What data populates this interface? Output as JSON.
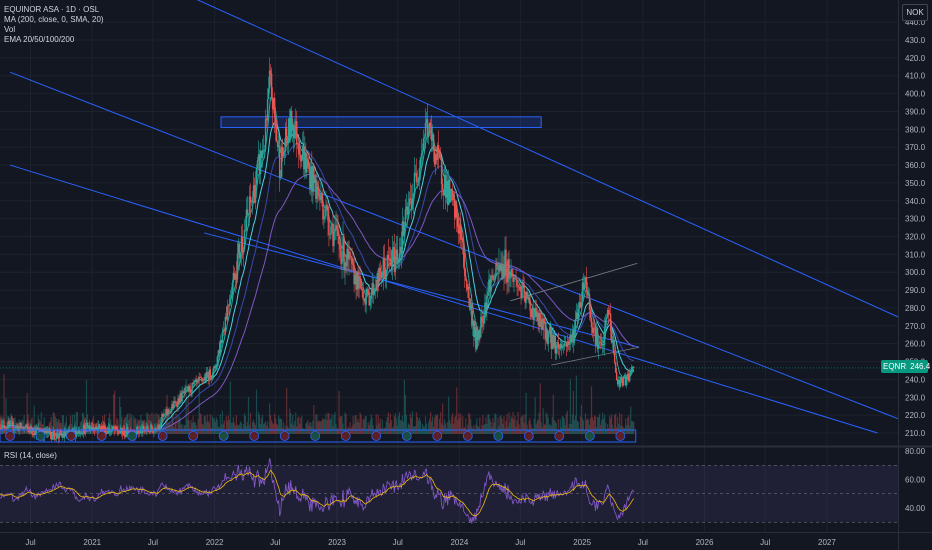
{
  "legend": {
    "title": "EQUINOR ASA · 1D · OSL",
    "ma": "MA (200, close, 0, SMA, 20)",
    "vol": "Vol",
    "ema": "EMA 20/50/100/200"
  },
  "currency": "NOK",
  "rsi_label": "RSI (14, close)",
  "price_tag": {
    "symbol": "EQNR",
    "price": "246.4"
  },
  "colors": {
    "background": "#131722",
    "grid": "#1e222d",
    "up": "#26a69a",
    "down": "#ef5350",
    "trendline": "#2962ff",
    "rsi": "#7e57c2",
    "rsi_ma": "#f0b90b",
    "ema20": "#26a69a",
    "ema50": "#4dd0e1",
    "ema100": "#3949ab",
    "ema200": "#7e57c2"
  },
  "chart_data": [
    {
      "type": "candlestick",
      "title": "EQUINOR ASA · 1D · OSL",
      "ylim": [
        205,
        440
      ],
      "y_ticks": [
        210,
        220,
        230,
        240,
        250,
        260,
        270,
        280,
        290,
        300,
        310,
        320,
        330,
        340,
        350,
        360,
        370,
        380,
        390,
        400,
        410,
        420,
        430,
        440
      ],
      "y_tick_labels": [
        "210.0",
        "220.0",
        "230.0",
        "240.0",
        "250.0",
        "260.0",
        "270.0",
        "280.0",
        "290.0",
        "300.0",
        "310.0",
        "320.0",
        "330.0",
        "340.0",
        "350.0",
        "360.0",
        "370.0",
        "380.0",
        "390.0",
        "400.0",
        "410.0",
        "420.0",
        "430.0",
        "440.0"
      ],
      "x_ticks": [
        "2020-07-01",
        "2021-01-01",
        "2021-07-01",
        "2022-01-01",
        "2022-07-01",
        "2023-01-01",
        "2023-07-01",
        "2024-01-01",
        "2024-07-01",
        "2025-01-01",
        "2025-07-01",
        "2026-01-01",
        "2026-07-01",
        "2027-01-01"
      ],
      "x_tick_labels": [
        "Jul",
        "2021",
        "Jul",
        "2022",
        "Jul",
        "2023",
        "Jul",
        "2024",
        "Jul",
        "2025",
        "Jul",
        "2026",
        "Jul",
        "2027"
      ],
      "grid": true,
      "price_path": [
        [
          "2020-04-01",
          215
        ],
        [
          "2020-07-01",
          212
        ],
        [
          "2020-10-01",
          208
        ],
        [
          "2021-01-01",
          214
        ],
        [
          "2021-04-01",
          210
        ],
        [
          "2021-07-01",
          212
        ],
        [
          "2021-10-01",
          232
        ],
        [
          "2022-01-01",
          245
        ],
        [
          "2022-03-01",
          300
        ],
        [
          "2022-04-15",
          335
        ],
        [
          "2022-06-01",
          375
        ],
        [
          "2022-06-15",
          408
        ],
        [
          "2022-07-15",
          360
        ],
        [
          "2022-08-20",
          385
        ],
        [
          "2022-10-01",
          360
        ],
        [
          "2022-11-15",
          340
        ],
        [
          "2023-01-01",
          318
        ],
        [
          "2023-02-15",
          300
        ],
        [
          "2023-04-01",
          285
        ],
        [
          "2023-05-15",
          300
        ],
        [
          "2023-07-01",
          310
        ],
        [
          "2023-08-15",
          345
        ],
        [
          "2023-09-25",
          383
        ],
        [
          "2023-11-01",
          360
        ],
        [
          "2024-01-01",
          325
        ],
        [
          "2024-01-25",
          290
        ],
        [
          "2024-02-20",
          260
        ],
        [
          "2024-04-01",
          295
        ],
        [
          "2024-05-15",
          305
        ],
        [
          "2024-07-01",
          290
        ],
        [
          "2024-09-01",
          270
        ],
        [
          "2024-10-20",
          258
        ],
        [
          "2024-12-01",
          262
        ],
        [
          "2025-01-10",
          298
        ],
        [
          "2025-02-01",
          270
        ],
        [
          "2025-03-01",
          255
        ],
        [
          "2025-03-20",
          280
        ],
        [
          "2025-04-15",
          238
        ],
        [
          "2025-05-15",
          240
        ],
        [
          "2025-06-05",
          246.4
        ]
      ],
      "last_price": 246.4,
      "annotations": {
        "resistance_zone": {
          "from": "2022-01-20",
          "to": "2024-09-01",
          "low": 381,
          "high": 387
        },
        "descending_channel": [
          {
            "start": [
              "2020-05-01",
              500
            ],
            "end": [
              "2027-08-01",
              275
            ]
          },
          {
            "start": [
              "2020-05-01",
              412
            ],
            "end": [
              "2027-08-01",
              218
            ]
          },
          {
            "start": [
              "2020-05-01",
              360
            ],
            "end": [
              "2027-06-01",
              210
            ]
          },
          {
            "start": [
              "2021-12-01",
              322
            ],
            "end": [
              "2025-06-20",
              258
            ]
          }
        ],
        "triangle_lines": [
          {
            "start": [
              "2024-06-01",
              284
            ],
            "end": [
              "2025-06-15",
              305
            ]
          },
          {
            "start": [
              "2024-10-01",
              248
            ],
            "end": [
              "2025-06-20",
              258
            ]
          }
        ]
      }
    },
    {
      "type": "line",
      "title": "RSI (14, close)",
      "ylim": [
        30,
        80
      ],
      "y_ticks": [
        40,
        60,
        80
      ],
      "y_tick_labels": [
        "40.00",
        "60.00",
        "80.00"
      ],
      "band": [
        30,
        70
      ],
      "series": [
        {
          "name": "RSI (14, close)",
          "key": "rsi"
        }
      ]
    }
  ]
}
